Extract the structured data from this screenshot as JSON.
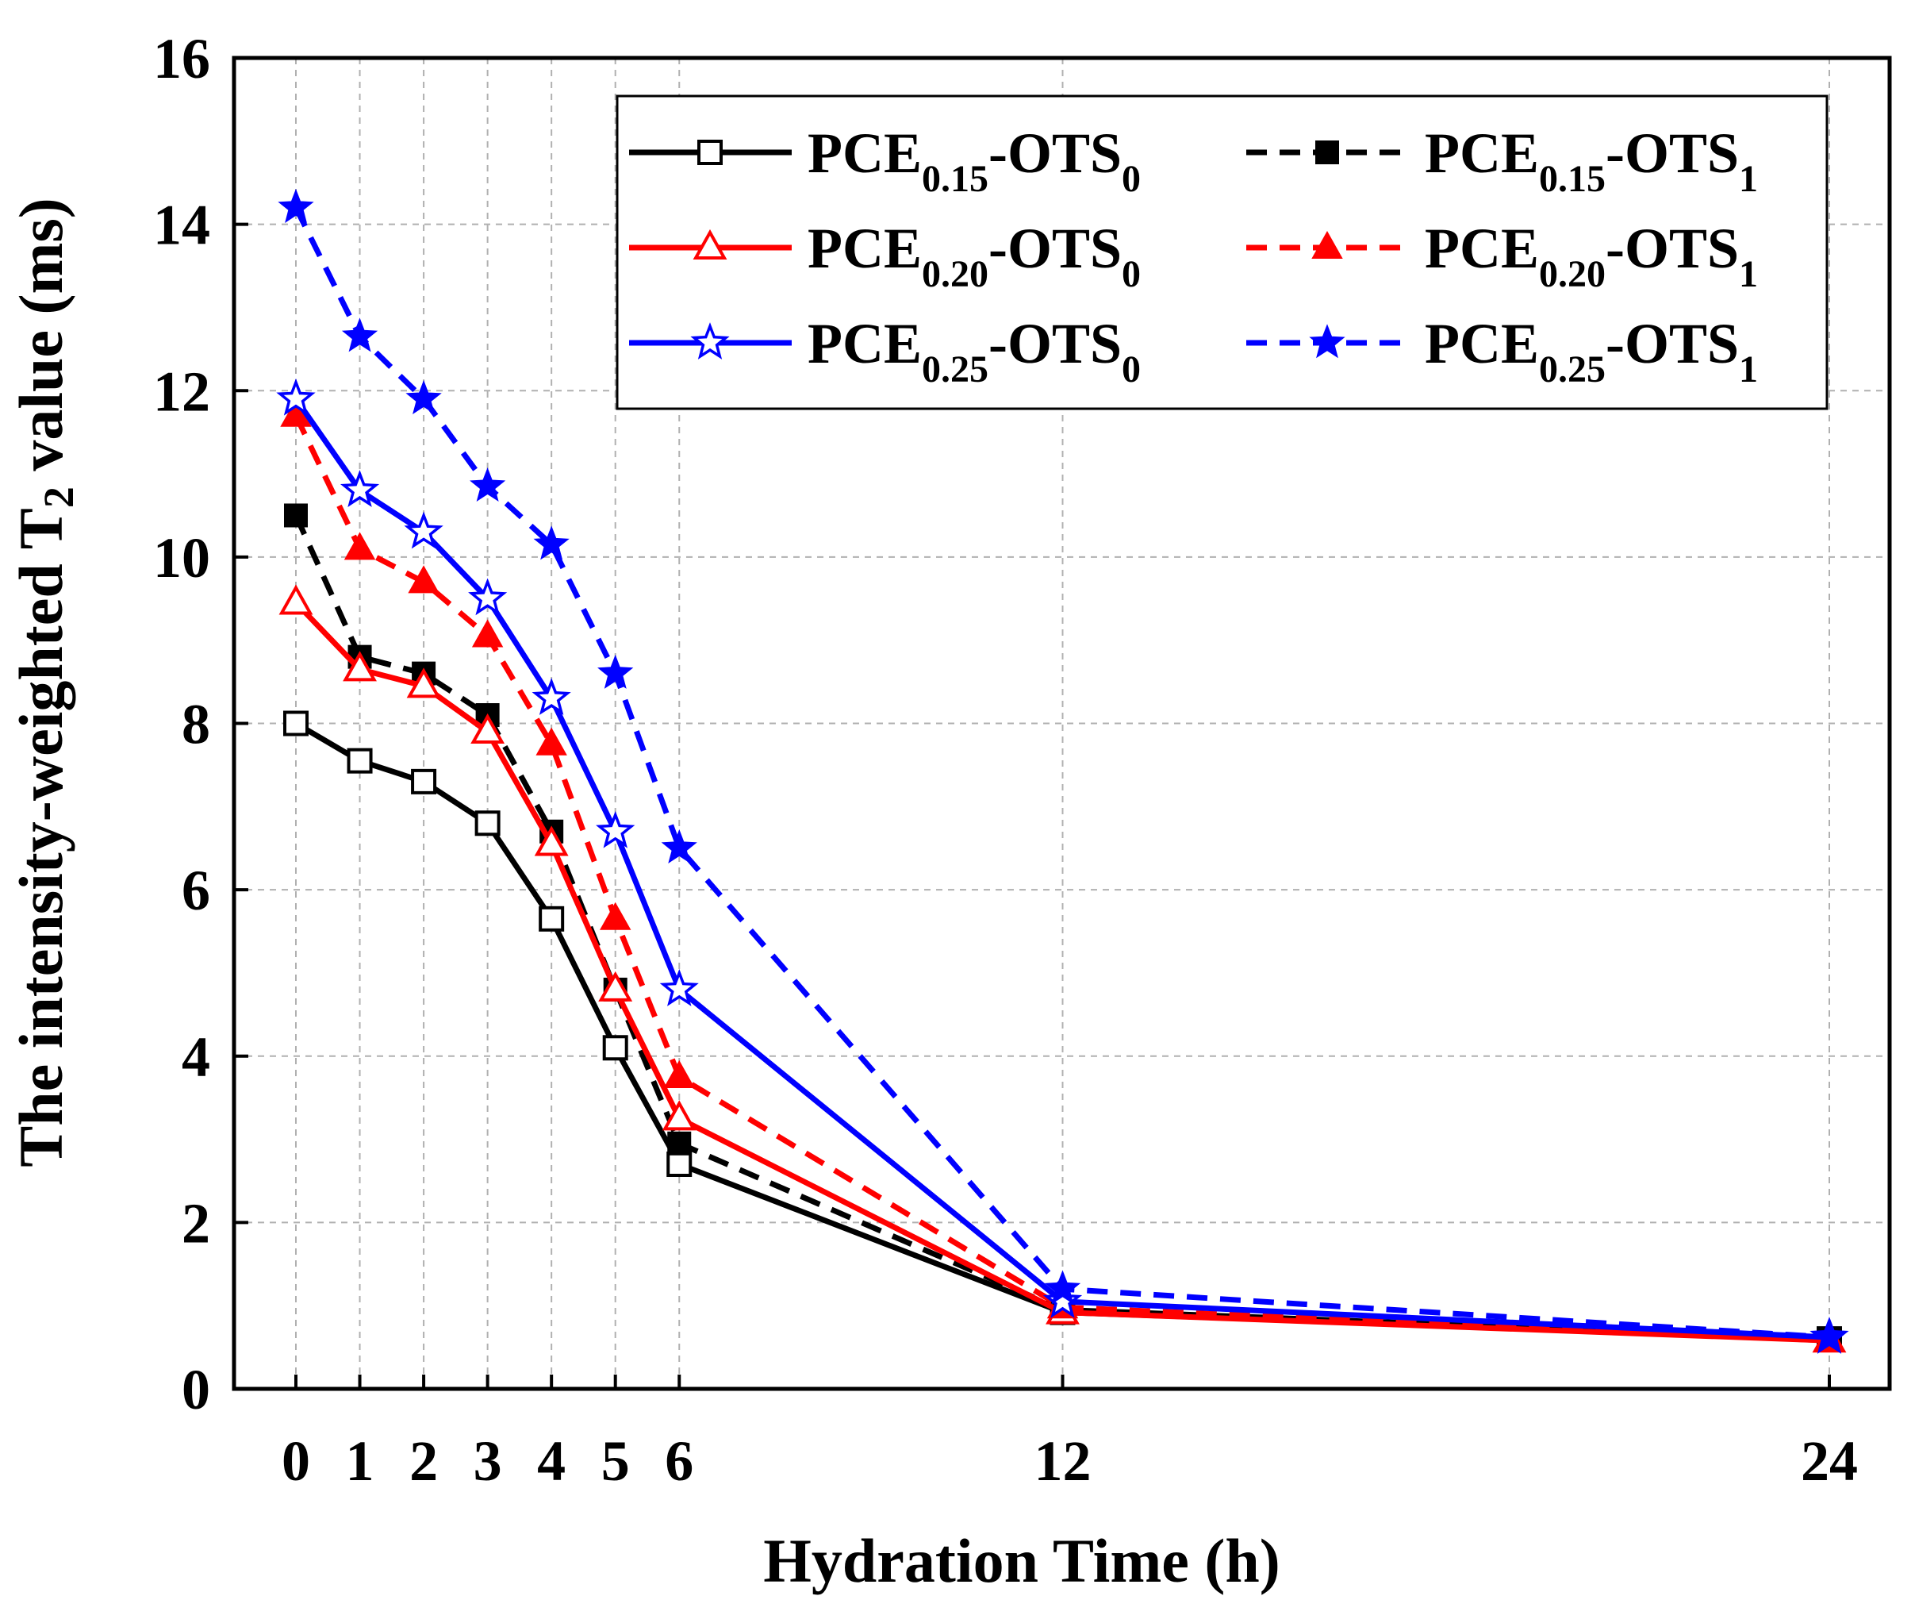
{
  "chart_data": {
    "type": "line",
    "title": "",
    "xlabel": "Hydration Time (h)",
    "ylabel_parts": [
      "The intensity-weighted T",
      "2",
      " value (ms)"
    ],
    "x": [
      0,
      1,
      2,
      3,
      4,
      5,
      6,
      12,
      24
    ],
    "xtick_labels": [
      "0",
      "1",
      "2",
      "3",
      "4",
      "5",
      "6",
      "12",
      "24"
    ],
    "ytick_labels": [
      "0",
      "2",
      "4",
      "6",
      "8",
      "10",
      "12",
      "14",
      "16"
    ],
    "yticks": [
      0,
      2,
      4,
      6,
      8,
      10,
      12,
      14,
      16
    ],
    "ylim": [
      0,
      16
    ],
    "grid": true,
    "legend_position": "top-right",
    "series": [
      {
        "name": "PCE0.15-OTS0",
        "legend": {
          "base": "PCE",
          "sub1": "0.15",
          "mid": "-OTS",
          "sub2": "0"
        },
        "color": "#000000",
        "dash": "solid",
        "marker": "square-open",
        "values": [
          8.0,
          7.55,
          7.3,
          6.8,
          5.65,
          4.1,
          2.7,
          0.92,
          0.6
        ]
      },
      {
        "name": "PCE0.15-OTS1",
        "legend": {
          "base": "PCE",
          "sub1": "0.15",
          "mid": "-OTS",
          "sub2": "1"
        },
        "color": "#000000",
        "dash": "dashed",
        "marker": "square-filled",
        "values": [
          10.5,
          8.8,
          8.6,
          8.1,
          6.7,
          4.8,
          2.95,
          0.95,
          0.6
        ]
      },
      {
        "name": "PCE0.20-OTS0",
        "legend": {
          "base": "PCE",
          "sub1": "0.20",
          "mid": "-OTS",
          "sub2": "0"
        },
        "color": "#ff0000",
        "dash": "solid",
        "marker": "triangle-open",
        "values": [
          9.45,
          8.65,
          8.45,
          7.9,
          6.55,
          4.8,
          3.25,
          0.92,
          0.58
        ]
      },
      {
        "name": "PCE0.20-OTS1",
        "legend": {
          "base": "PCE",
          "sub1": "0.20",
          "mid": "-OTS",
          "sub2": "1"
        },
        "color": "#ff0000",
        "dash": "dashed",
        "marker": "triangle-filled",
        "values": [
          11.7,
          10.1,
          9.7,
          9.05,
          7.75,
          5.65,
          3.75,
          0.98,
          0.58
        ]
      },
      {
        "name": "PCE0.25-OTS0",
        "legend": {
          "base": "PCE",
          "sub1": "0.25",
          "mid": "-OTS",
          "sub2": "0"
        },
        "color": "#0000ff",
        "dash": "solid",
        "marker": "star-open",
        "values": [
          11.9,
          10.8,
          10.3,
          9.5,
          8.3,
          6.7,
          4.8,
          1.05,
          0.62
        ]
      },
      {
        "name": "PCE0.25-OTS1",
        "legend": {
          "base": "PCE",
          "sub1": "0.25",
          "mid": "-OTS",
          "sub2": "1"
        },
        "color": "#0000ff",
        "dash": "dashed",
        "marker": "star-filled",
        "values": [
          14.2,
          12.65,
          11.9,
          10.85,
          10.15,
          8.6,
          6.5,
          1.2,
          0.62
        ]
      }
    ]
  }
}
